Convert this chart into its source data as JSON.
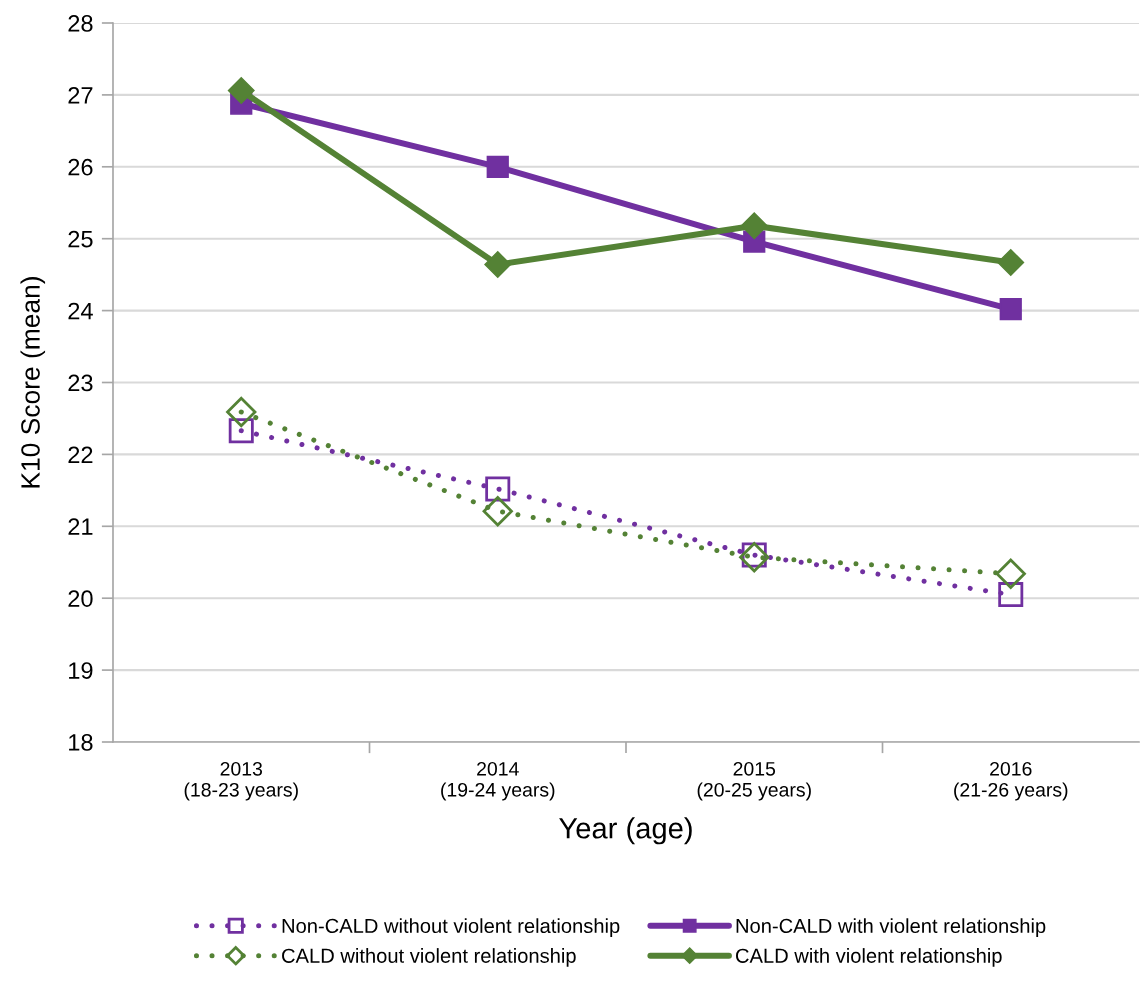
{
  "chart_data": {
    "type": "line",
    "xlabel": "Year (age)",
    "ylabel": "K10 Score (mean)",
    "categories": [
      "2013\n(18-23 years)",
      "2014\n(19-24 years)",
      "2015\n(20-25 years)",
      "2016\n(21-26 years)"
    ],
    "ylim": [
      18,
      28
    ],
    "yticks": [
      18,
      19,
      20,
      21,
      22,
      23,
      24,
      25,
      26,
      27,
      28
    ],
    "grid": "y",
    "legend": "bottom",
    "series": [
      {
        "name": "Non-CALD without violent relationship",
        "color": "#7030a0",
        "values": [
          22.33,
          21.52,
          20.6,
          20.05
        ],
        "marker": "square",
        "line_style": "dotted"
      },
      {
        "name": "Non-CALD with violent relationship",
        "color": "#7030a0",
        "values": [
          26.88,
          26.0,
          24.96,
          24.02
        ],
        "marker": "square",
        "line_style": "solid"
      },
      {
        "name": "CALD without violent relationship",
        "color": "#548235",
        "values": [
          22.59,
          21.21,
          20.57,
          20.34
        ],
        "marker": "diamond",
        "line_style": "dotted"
      },
      {
        "name": "CALD with violent relationship",
        "color": "#548235",
        "values": [
          27.06,
          24.64,
          25.18,
          24.67
        ],
        "marker": "diamond",
        "line_style": "solid"
      }
    ]
  }
}
